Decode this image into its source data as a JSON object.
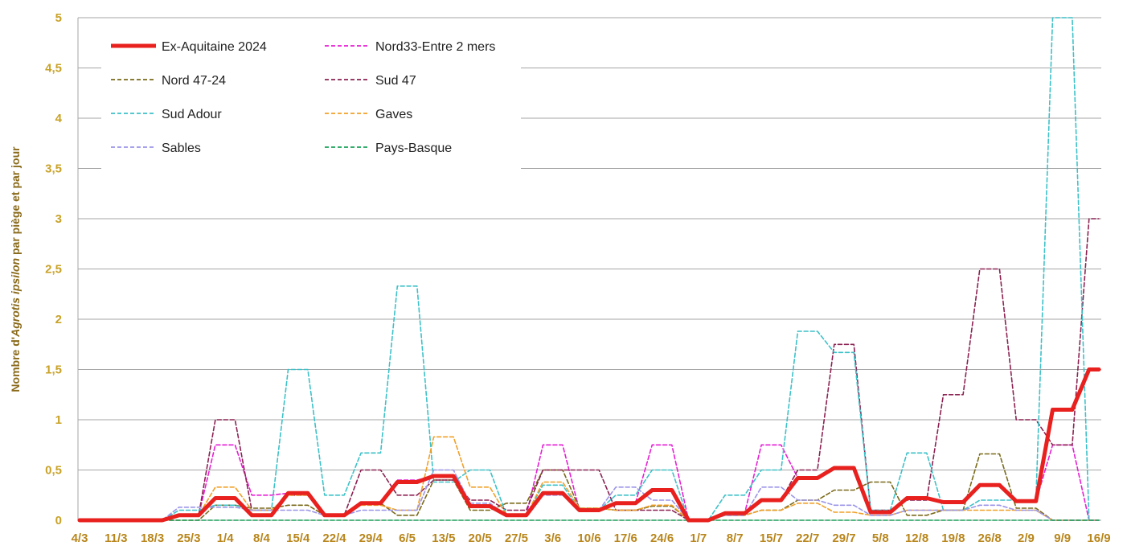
{
  "chart_data": {
    "type": "line",
    "title": "",
    "ylabel_parts": [
      "Nombre d'",
      "Agrotis ipsilon",
      " par piège et par jour"
    ],
    "ylim": [
      0,
      5
    ],
    "yticks": [
      "0",
      "0,5",
      "1",
      "1,5",
      "2",
      "2,5",
      "3",
      "3,5",
      "4",
      "4,5",
      "5"
    ],
    "x": [
      "4/3",
      "11/3",
      "18/3",
      "25/3",
      "1/4",
      "8/4",
      "15/4",
      "22/4",
      "29/4",
      "6/5",
      "13/5",
      "20/5",
      "27/5",
      "3/6",
      "10/6",
      "17/6",
      "24/6",
      "1/7",
      "8/7",
      "15/7",
      "22/7",
      "29/7",
      "5/8",
      "12/8",
      "19/8",
      "26/8",
      "2/9",
      "9/9",
      "16/9"
    ],
    "grid": "horizontal",
    "legend_position": "top-left",
    "series": [
      {
        "name": "Ex-Aquitaine 2024",
        "color": "#e8201e",
        "dashed": false,
        "width": 5,
        "values": [
          0,
          0,
          0,
          0.05,
          0.22,
          0.05,
          0.27,
          0.05,
          0.17,
          0.38,
          0.44,
          0.14,
          0.05,
          0.27,
          0.1,
          0.17,
          0.3,
          0,
          0.07,
          0.2,
          0.42,
          0.52,
          0.08,
          0.22,
          0.18,
          0.35,
          0.19,
          1.1,
          1.5
        ]
      },
      {
        "name": "Nord33-Entre 2 mers",
        "color": "#e61fd4",
        "dashed": true,
        "width": 1.6,
        "values": [
          0,
          0,
          0,
          0.05,
          0.75,
          0.25,
          0.27,
          0.05,
          0.17,
          0.4,
          0.44,
          0.14,
          0.05,
          0.75,
          0.1,
          0.17,
          0.75,
          0,
          0.07,
          0.75,
          0.42,
          0.52,
          0.08,
          0.22,
          0.18,
          0.35,
          0.19,
          0.75,
          0
        ]
      },
      {
        "name": "Nord 47-24",
        "color": "#7a6a1a",
        "dashed": true,
        "width": 1.6,
        "values": [
          0,
          0,
          0,
          0,
          0.15,
          0.12,
          0.15,
          0.05,
          0.17,
          0.05,
          0.4,
          0.1,
          0.17,
          0.5,
          0.12,
          0.1,
          0.14,
          0,
          0.05,
          0.1,
          0.2,
          0.3,
          0.38,
          0.05,
          0.1,
          0.66,
          0.12,
          0,
          0
        ]
      },
      {
        "name": "Sud 47",
        "color": "#8b2252",
        "dashed": true,
        "width": 1.6,
        "values": [
          0,
          0,
          0,
          0.05,
          1,
          0.1,
          0.25,
          0.05,
          0.5,
          0.25,
          0.4,
          0.2,
          0.1,
          0.5,
          0.5,
          0.1,
          0.1,
          0,
          0.05,
          0.2,
          0.5,
          1.75,
          0.1,
          0.2,
          1.25,
          2.5,
          1,
          0.75,
          3
        ]
      },
      {
        "name": "Sud Adour",
        "color": "#3cc1c8",
        "dashed": true,
        "width": 1.6,
        "values": [
          0,
          0,
          0,
          0.1,
          0.15,
          0.1,
          1.5,
          0.25,
          0.67,
          2.33,
          0.38,
          0.5,
          0.05,
          0.35,
          0.1,
          0.25,
          0.5,
          0,
          0.25,
          0.5,
          1.88,
          1.67,
          0.1,
          0.67,
          0.1,
          0.2,
          0.2,
          5,
          0
        ]
      },
      {
        "name": "Gaves",
        "color": "#f0a028",
        "dashed": true,
        "width": 1.6,
        "values": [
          0,
          0,
          0,
          0.05,
          0.33,
          0.1,
          0.25,
          0.05,
          0.15,
          0.1,
          0.83,
          0.33,
          0.05,
          0.38,
          0.12,
          0.1,
          0.15,
          0,
          0.05,
          0.1,
          0.17,
          0.08,
          0.05,
          0.1,
          0.1,
          0.1,
          0.1,
          0,
          0
        ]
      },
      {
        "name": "Sables",
        "color": "#9b95e8",
        "dashed": true,
        "width": 1.6,
        "values": [
          0,
          0,
          0,
          0.13,
          0.13,
          0.1,
          0.1,
          0.05,
          0.1,
          0.1,
          0.5,
          0.17,
          0.05,
          0.25,
          0.1,
          0.33,
          0.2,
          0,
          0.05,
          0.33,
          0.2,
          0.15,
          0.05,
          0.1,
          0.1,
          0.15,
          0.1,
          0,
          0
        ]
      },
      {
        "name": "Pays-Basque",
        "color": "#1aa05a",
        "dashed": true,
        "width": 1.6,
        "values": [
          0,
          0,
          0,
          0,
          0,
          0,
          0,
          0,
          0,
          0,
          0,
          0,
          0,
          0,
          0,
          0,
          0,
          0,
          0,
          0,
          0,
          0,
          0,
          0,
          0,
          0,
          0,
          0,
          0
        ]
      }
    ]
  }
}
